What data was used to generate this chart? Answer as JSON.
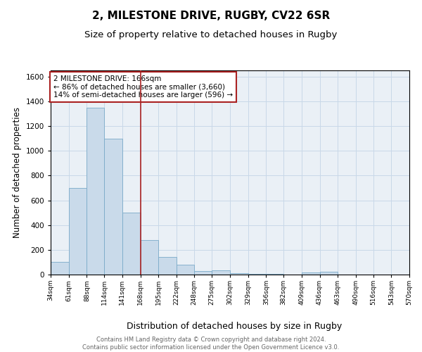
{
  "title1": "2, MILESTONE DRIVE, RUGBY, CV22 6SR",
  "title2": "Size of property relative to detached houses in Rugby",
  "xlabel": "Distribution of detached houses by size in Rugby",
  "ylabel": "Number of detached properties",
  "bin_labels": [
    "34sqm",
    "61sqm",
    "88sqm",
    "114sqm",
    "141sqm",
    "168sqm",
    "195sqm",
    "222sqm",
    "248sqm",
    "275sqm",
    "302sqm",
    "329sqm",
    "356sqm",
    "382sqm",
    "409sqm",
    "436sqm",
    "463sqm",
    "490sqm",
    "516sqm",
    "543sqm",
    "570sqm"
  ],
  "bin_edges": [
    34,
    61,
    88,
    114,
    141,
    168,
    195,
    222,
    248,
    275,
    302,
    329,
    356,
    382,
    409,
    436,
    463,
    490,
    516,
    543,
    570
  ],
  "bar_heights": [
    100,
    700,
    1350,
    1100,
    500,
    280,
    140,
    80,
    30,
    35,
    10,
    5,
    3,
    2,
    15,
    20,
    2,
    0,
    0,
    0,
    0
  ],
  "bar_color": "#c9daea",
  "bar_edgecolor": "#7aaac8",
  "vline_x": 168,
  "vline_color": "#aa2222",
  "annotation_text": "2 MILESTONE DRIVE: 166sqm\n← 86% of detached houses are smaller (3,660)\n14% of semi-detached houses are larger (596) →",
  "annotation_box_color": "white",
  "annotation_box_edgecolor": "#aa2222",
  "ylim": [
    0,
    1650
  ],
  "yticks": [
    0,
    200,
    400,
    600,
    800,
    1000,
    1200,
    1400,
    1600
  ],
  "grid_color": "#c8d8e8",
  "background_color": "#eaf0f6",
  "footnote": "Contains HM Land Registry data © Crown copyright and database right 2024.\nContains public sector information licensed under the Open Government Licence v3.0.",
  "title1_fontsize": 11,
  "title2_fontsize": 9.5,
  "xlabel_fontsize": 9,
  "ylabel_fontsize": 8.5,
  "annot_fontsize": 7.5,
  "footnote_fontsize": 6,
  "footnote_color": "#666666"
}
